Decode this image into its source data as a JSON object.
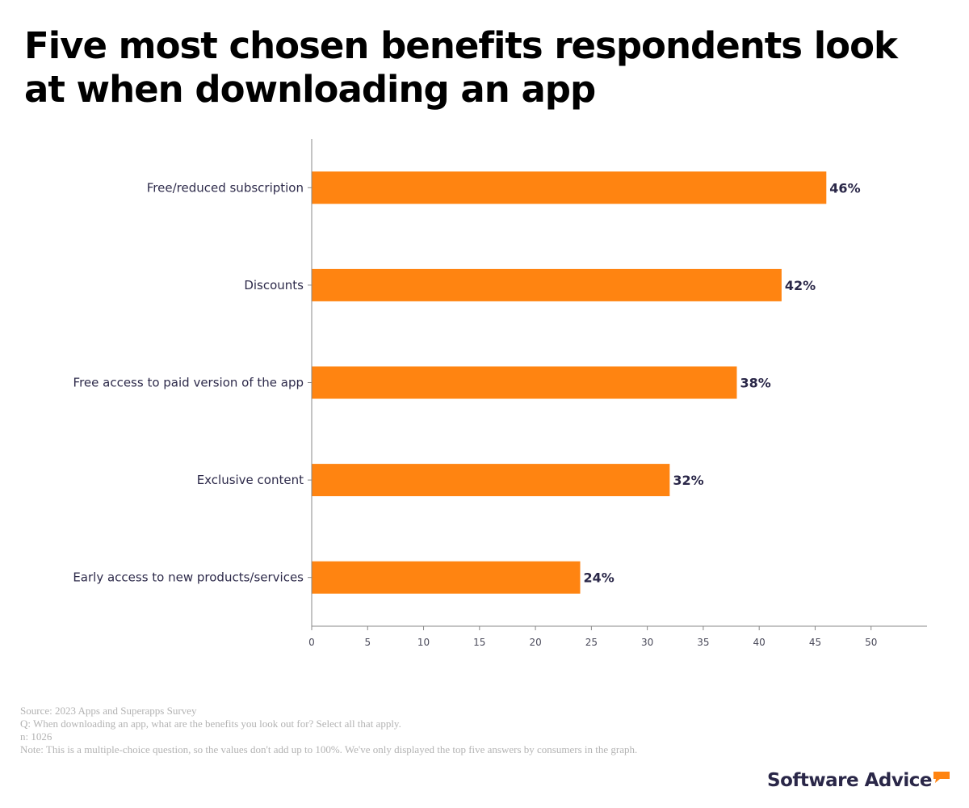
{
  "title": "Five most chosen benefits respondents look at when downloading an app",
  "chart_data": {
    "type": "bar",
    "orientation": "horizontal",
    "title": "Five most chosen benefits respondents look at when downloading an app",
    "categories": [
      "Free/reduced subscription",
      "Discounts",
      "Free access to paid version of the app",
      "Exclusive content",
      "Early access to new products/services"
    ],
    "values": [
      46,
      42,
      38,
      32,
      24
    ],
    "data_labels": [
      "46%",
      "42%",
      "38%",
      "32%",
      "24%"
    ],
    "xlabel": "",
    "ylabel": "",
    "xlim": [
      0,
      55
    ],
    "xticks": [
      0,
      5,
      10,
      15,
      20,
      25,
      30,
      35,
      40,
      45,
      50
    ],
    "grid": false,
    "legend": "none",
    "bar_color": "#ff8411"
  },
  "footnotes": {
    "source": "Source: 2023 Apps and Superapps Survey",
    "question": "Q: When downloading an app, what are the benefits you look out for? Select all that apply.",
    "n": "n: 1026",
    "note": "Note: This is a multiple-choice question, so the values don't add up to 100%. We've only displayed the top five answers by consumers in the graph."
  },
  "brand": {
    "name": "Software Advice",
    "accent_color": "#ff8411"
  }
}
